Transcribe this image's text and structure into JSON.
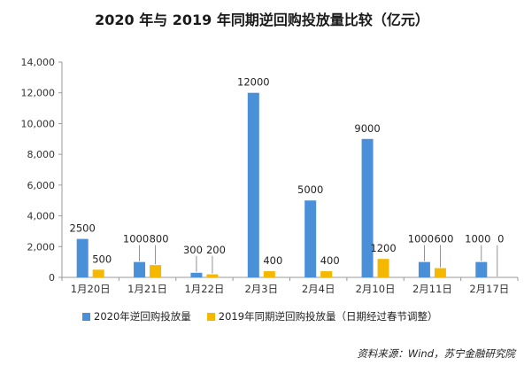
{
  "chart_data": {
    "type": "bar",
    "title": "2020 年与 2019 年同期逆回购投放量比较（亿元）",
    "categories": [
      "1月20日",
      "1月21日",
      "1月22日",
      "2月3日",
      "2月4日",
      "2月10日",
      "2月11日",
      "2月17日"
    ],
    "series": [
      {
        "name": "2020年逆回购投放量",
        "color": "#4a90d9",
        "values": [
          2500,
          1000,
          300,
          12000,
          5000,
          9000,
          1000,
          1000
        ]
      },
      {
        "name": "2019年同期逆回购投放量（日期经过春节调整）",
        "color": "#f5b800",
        "values": [
          500,
          800,
          200,
          400,
          400,
          1200,
          600,
          0
        ]
      }
    ],
    "ylim": [
      0,
      14000
    ],
    "yticks": [
      "0",
      "2,000",
      "4,000",
      "6,000",
      "8,000",
      "10,000",
      "12,000",
      "14,000"
    ],
    "grid": false,
    "legend": "bottom",
    "source": "资料来源：Wind，苏宁金融研究院"
  }
}
